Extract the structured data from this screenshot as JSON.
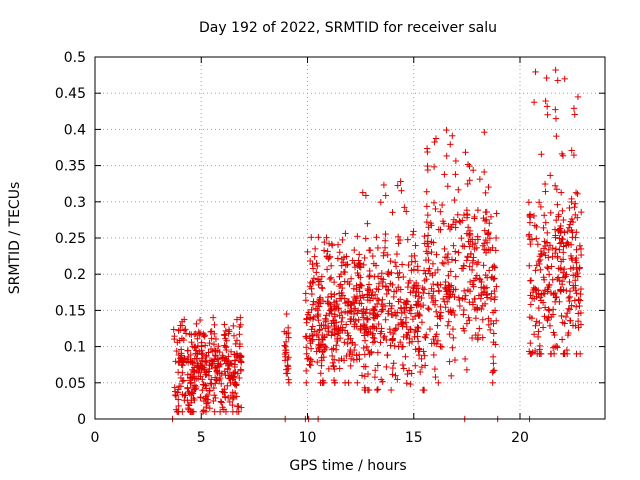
{
  "chart_data": {
    "type": "scatter",
    "title": "Day 192 of 2022, SRMTID for receiver salu",
    "xlabel": "GPS time / hours",
    "ylabel": "SRMTID / TECUs",
    "xlim": [
      0,
      24
    ],
    "ylim": [
      0,
      0.5
    ],
    "grid": true,
    "marker": "+",
    "color": "#e00000",
    "x_ticks": [
      0,
      5,
      10,
      15,
      20
    ],
    "x_tick_labels": [
      "0",
      "5",
      "10",
      "15",
      "20"
    ],
    "y_ticks": [
      0,
      0.05,
      0.1,
      0.15,
      0.2,
      0.25,
      0.3,
      0.35,
      0.4,
      0.45,
      0.5
    ],
    "y_tick_labels": [
      "0",
      "0.05",
      "0.1",
      "0.15",
      "0.2",
      "0.25",
      "0.3",
      "0.35",
      "0.4",
      "0.45",
      "0.5"
    ],
    "series": [
      {
        "name": "SRMTID",
        "clusters": [
          {
            "x_range": [
              3.7,
              6.9
            ],
            "y_center": 0.065,
            "y_spread": 0.03,
            "y_max": 0.14,
            "y_min": 0.01,
            "count": 380
          },
          {
            "x_range": [
              8.9,
              9.15
            ],
            "y_center": 0.09,
            "y_spread": 0.03,
            "y_max": 0.145,
            "y_min": 0.05,
            "count": 25
          },
          {
            "x_range": [
              9.9,
              12.5
            ],
            "y_center": 0.14,
            "y_spread": 0.045,
            "y_max": 0.26,
            "y_min": 0.05,
            "count": 330
          },
          {
            "x_range": [
              12.5,
              15.5
            ],
            "y_center": 0.15,
            "y_spread": 0.05,
            "y_max": 0.33,
            "y_min": 0.04,
            "count": 330
          },
          {
            "x_range": [
              15.5,
              18.9
            ],
            "y_center": 0.2,
            "y_spread": 0.06,
            "y_max": 0.4,
            "y_min": 0.05,
            "count": 340
          },
          {
            "x_range": [
              20.4,
              22.9
            ],
            "y_center": 0.2,
            "y_spread": 0.065,
            "y_max": 0.485,
            "y_min": 0.09,
            "count": 300
          }
        ],
        "zero_points_x": [
          3.65,
          8.95,
          9.9,
          10.05,
          10.5,
          17.4,
          18.95,
          20.45
        ]
      }
    ]
  }
}
